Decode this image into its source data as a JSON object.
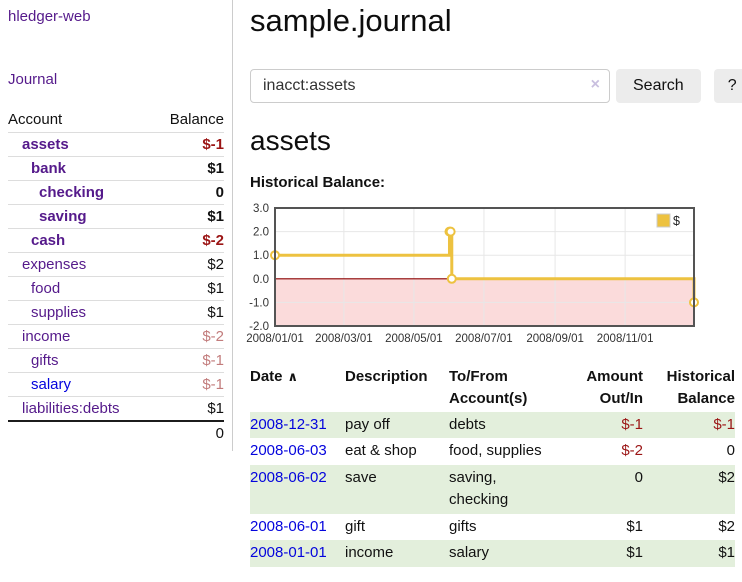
{
  "sidebar": {
    "brand": "hledger-web",
    "nav": {
      "journal": "Journal"
    },
    "table": {
      "headers": {
        "account": "Account",
        "balance": "Balance"
      },
      "accounts": [
        {
          "name": "assets",
          "indent": 1,
          "bold": true,
          "link_style": "visited",
          "balance": "$-1",
          "balance_style": "negative-strong"
        },
        {
          "name": "bank",
          "indent": 2,
          "bold": true,
          "link_style": "visited",
          "balance": "$1",
          "balance_style": "normal"
        },
        {
          "name": "checking",
          "indent": 3,
          "bold": true,
          "link_style": "visited",
          "balance": "0",
          "balance_style": "normal"
        },
        {
          "name": "saving",
          "indent": 3,
          "bold": true,
          "link_style": "visited",
          "balance": "$1",
          "balance_style": "normal"
        },
        {
          "name": "cash",
          "indent": 2,
          "bold": true,
          "link_style": "visited",
          "balance": "$-2",
          "balance_style": "negative-strong"
        },
        {
          "name": "expenses",
          "indent": 1,
          "bold": false,
          "link_style": "visited",
          "balance": "$2",
          "balance_style": "normal"
        },
        {
          "name": "food",
          "indent": 2,
          "bold": false,
          "link_style": "visited",
          "balance": "$1",
          "balance_style": "normal"
        },
        {
          "name": "supplies",
          "indent": 2,
          "bold": false,
          "link_style": "visited",
          "balance": "$1",
          "balance_style": "normal"
        },
        {
          "name": "income",
          "indent": 1,
          "bold": false,
          "link_style": "visited",
          "balance": "$-2",
          "balance_style": "negative-soft"
        },
        {
          "name": "gifts",
          "indent": 2,
          "bold": false,
          "link_style": "visited",
          "balance": "$-1",
          "balance_style": "negative-soft"
        },
        {
          "name": "salary",
          "indent": 2,
          "bold": false,
          "link_style": "unvisited",
          "balance": "$-1",
          "balance_style": "negative-soft"
        },
        {
          "name": "liabilities:debts",
          "indent": 1,
          "bold": false,
          "link_style": "visited",
          "balance": "$1",
          "balance_style": "normal"
        }
      ],
      "total": "0"
    }
  },
  "header": {
    "title": "sample.journal"
  },
  "search": {
    "value": "inacct:assets",
    "clear_icon": "×",
    "button": "Search",
    "help_button": "?"
  },
  "account_page": {
    "heading": "assets",
    "chart_label": "Historical Balance:"
  },
  "chart_data": {
    "type": "line",
    "step": true,
    "title": "Historical Balance:",
    "x_range": [
      "2008-01-01",
      "2008-12-31"
    ],
    "ylim": [
      -2,
      3
    ],
    "yticks": [
      3.0,
      2.0,
      1.0,
      0.0,
      -1.0,
      -2.0
    ],
    "xticks": [
      {
        "date": "2008-01-01",
        "label": "2008/01/01"
      },
      {
        "date": "2008-03-01",
        "label": "2008/03/01"
      },
      {
        "date": "2008-05-01",
        "label": "2008/05/01"
      },
      {
        "date": "2008-07-01",
        "label": "2008/07/01"
      },
      {
        "date": "2008-09-01",
        "label": "2008/09/01"
      },
      {
        "date": "2008-11-01",
        "label": "2008/11/01"
      }
    ],
    "series": [
      {
        "name": "$",
        "points": [
          {
            "date": "2008-01-01",
            "value": 1
          },
          {
            "date": "2008-06-01",
            "value": 2
          },
          {
            "date": "2008-06-02",
            "value": 2
          },
          {
            "date": "2008-06-03",
            "value": 0
          },
          {
            "date": "2008-12-31",
            "value": -1
          }
        ]
      }
    ],
    "legend": {
      "label": "$",
      "position": "top-right"
    },
    "grid": true,
    "negative_region_shaded": true
  },
  "transactions": {
    "headers": {
      "date": "Date",
      "sort_icon": "∧",
      "description": "Description",
      "accounts_line1": "To/From",
      "accounts_line2": "Account(s)",
      "amount_line1": "Amount",
      "amount_line2": "Out/In",
      "balance_line1": "Historical",
      "balance_line2": "Balance"
    },
    "rows": [
      {
        "date": "2008-12-31",
        "description": "pay off",
        "accounts": "debts",
        "amount": "$-1",
        "amount_negative": true,
        "balance": "$-1",
        "balance_negative": true
      },
      {
        "date": "2008-06-03",
        "description": "eat & shop",
        "accounts": "food, supplies",
        "amount": "$-2",
        "amount_negative": true,
        "balance": "0",
        "balance_negative": false
      },
      {
        "date": "2008-06-02",
        "description": "save",
        "accounts": "saving,\nchecking",
        "amount": "0",
        "amount_negative": false,
        "balance": "$2",
        "balance_negative": false
      },
      {
        "date": "2008-06-01",
        "description": "gift",
        "accounts": "gifts",
        "amount": "$1",
        "amount_negative": false,
        "balance": "$2",
        "balance_negative": false
      },
      {
        "date": "2008-01-01",
        "description": "income",
        "accounts": "salary",
        "amount": "$1",
        "amount_negative": false,
        "balance": "$1",
        "balance_negative": false
      }
    ]
  },
  "colors": {
    "link_purple": "#551a8b",
    "link_blue": "#0404dd",
    "negative_strong": "#9b1515",
    "negative_soft": "#c27c7c",
    "row_stripe_green": "#e3efdc",
    "button_bg": "#ececec",
    "chart_line_gold": "#edc240",
    "chart_negative_region": "#fbdbdb",
    "chart_zero_line": "#8b0000"
  }
}
